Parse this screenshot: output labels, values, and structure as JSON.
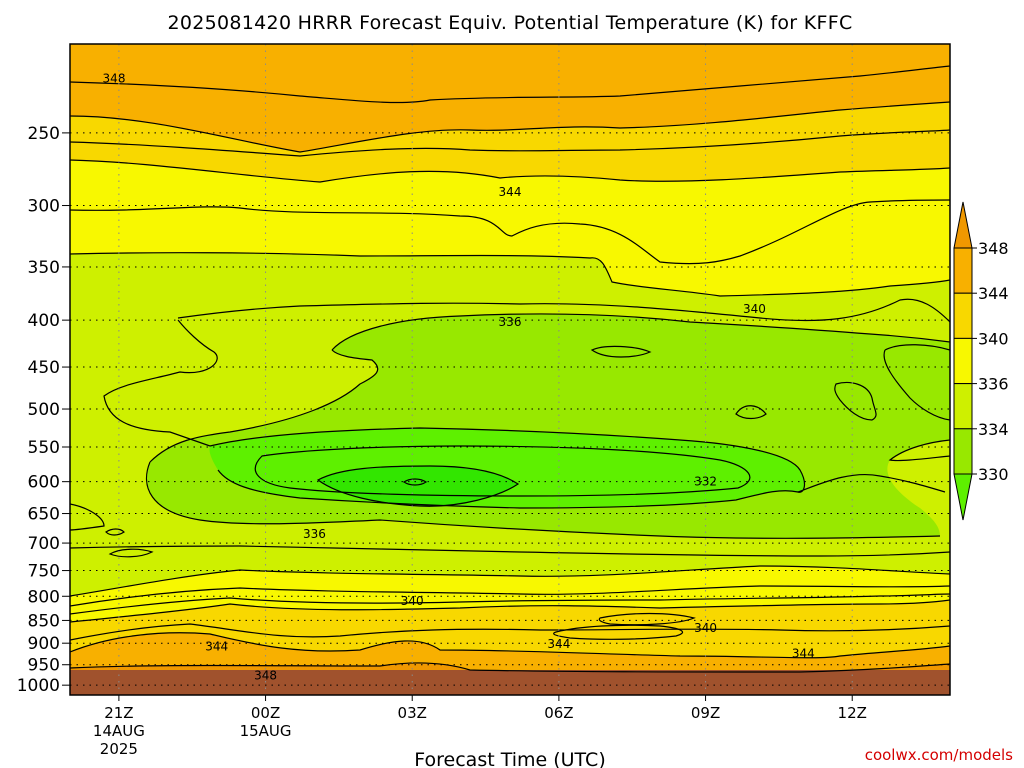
{
  "chart_data": {
    "type": "heatmap",
    "title": "2025081420 HRRR Forecast Equiv. Potential Temperature (K) for KFFC",
    "xlabel": "Forecast Time (UTC)",
    "ylabel": "",
    "credit": "coolwx.com/models",
    "x_ticks": [
      {
        "label": "21Z",
        "sub": "14AUG",
        "sub2": "2025",
        "hour": 21
      },
      {
        "label": "00Z",
        "sub": "15AUG",
        "sub2": "",
        "hour": 24
      },
      {
        "label": "03Z",
        "sub": "",
        "sub2": "",
        "hour": 27
      },
      {
        "label": "06Z",
        "sub": "",
        "sub2": "",
        "hour": 30
      },
      {
        "label": "09Z",
        "sub": "",
        "sub2": "",
        "hour": 33
      },
      {
        "label": "12Z",
        "sub": "",
        "sub2": "",
        "hour": 36
      }
    ],
    "x_range_hours": [
      20,
      38
    ],
    "y_ticks": [
      250,
      300,
      350,
      400,
      450,
      500,
      550,
      600,
      650,
      700,
      750,
      800,
      850,
      900,
      950,
      1000
    ],
    "y_range_hpa": [
      200,
      1025
    ],
    "surface_pressure": 1000,
    "colorbar": {
      "levels": [
        330,
        334,
        336,
        340,
        344,
        348
      ],
      "colors": [
        "#5ef000",
        "#98e800",
        "#cef000",
        "#f8f800",
        "#f8d800",
        "#f8b000",
        "#f09800"
      ],
      "surface_color": "#a0522d"
    },
    "contour_labels": [
      {
        "text": "348",
        "hour": 20.9,
        "p": 218
      },
      {
        "text": "344",
        "hour": 29.0,
        "p": 290
      },
      {
        "text": "340",
        "hour": 34.0,
        "p": 389
      },
      {
        "text": "336",
        "hour": 29.0,
        "p": 402
      },
      {
        "text": "332",
        "hour": 33.0,
        "p": 600
      },
      {
        "text": "336",
        "hour": 25.0,
        "p": 684
      },
      {
        "text": "340",
        "hour": 27.0,
        "p": 810
      },
      {
        "text": "340",
        "hour": 33.0,
        "p": 866
      },
      {
        "text": "344",
        "hour": 23.0,
        "p": 908
      },
      {
        "text": "344",
        "hour": 30.0,
        "p": 902
      },
      {
        "text": "344",
        "hour": 35.0,
        "p": 924
      },
      {
        "text": "348",
        "hour": 24.0,
        "p": 976
      }
    ]
  }
}
